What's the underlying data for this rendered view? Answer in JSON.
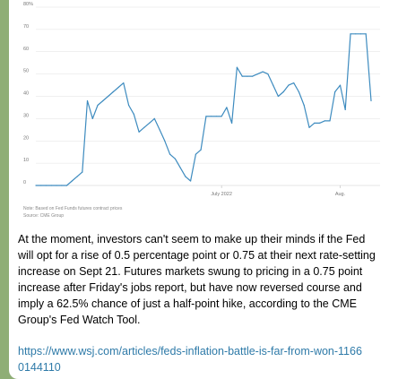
{
  "chart_data": {
    "type": "line",
    "title": "",
    "xlabel": "",
    "ylabel": "",
    "ylim": [
      0,
      80
    ],
    "y_ticks": [
      "80%",
      "70",
      "60",
      "50",
      "40",
      "30",
      "20",
      "10",
      "0"
    ],
    "x_tick_labels": [
      "July 2022",
      "Aug."
    ],
    "grid": true,
    "series": [
      {
        "values": [
          0,
          0,
          0,
          0,
          0,
          0,
          0,
          2,
          4,
          6,
          38,
          30,
          36,
          38,
          40,
          42,
          44,
          46,
          36,
          32,
          24,
          26,
          28,
          30,
          25,
          20,
          14,
          12,
          8,
          4,
          2,
          14,
          16,
          31,
          31,
          31,
          31,
          35,
          28,
          53,
          49,
          49,
          49,
          50,
          51,
          50,
          45,
          40,
          42,
          45,
          46,
          42,
          36,
          26,
          28,
          28,
          29,
          29,
          42,
          45,
          34,
          68,
          68,
          68,
          68,
          38
        ]
      }
    ],
    "note_lines": [
      "Note: Based on Fed Funds futures contract prices",
      "Source: CME Group"
    ]
  },
  "colors": {
    "line": "#3d8bbf",
    "grid": "#e0e0e0",
    "background": "#8fae76",
    "link": "#2e7aa8"
  },
  "message": {
    "caption": "At the moment, investors can't seem to make up their minds if the Fed will opt for a rise of 0.5 percentage point or 0.75 at their next rate-setting increase on Sept 21. Futures markets swung to pricing in a 0.75 point increase after Friday's jobs report, but have now reversed course and imply a 62.5% chance of just a half-point hike, according to the CME Group's Fed Watch Tool.",
    "link": "https://www.wsj.com/articles/feds-inflation-battle-is-far-from-won-11660144110"
  }
}
